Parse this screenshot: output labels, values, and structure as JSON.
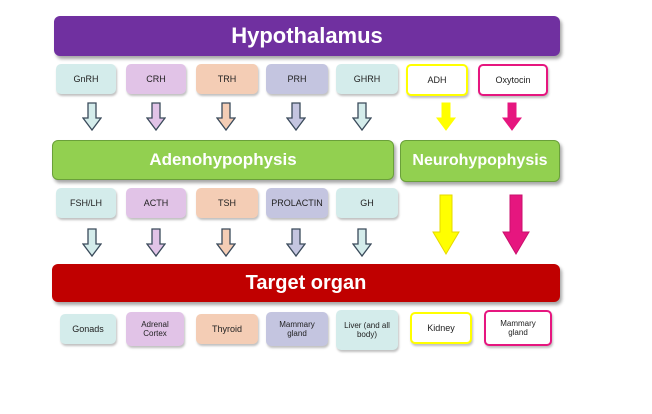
{
  "top": {
    "label": "Hypothalamus"
  },
  "middle": {
    "adeno_label": "Adenohypophysis",
    "neuro_label": "Neurohypophysis"
  },
  "bottom": {
    "label": "Target organ"
  },
  "releasing_hormones": [
    "GnRH",
    "CRH",
    "TRH",
    "PRH",
    "GHRH"
  ],
  "neuro_hormones": [
    "ADH",
    "Oxytocin"
  ],
  "pituitary_hormones": [
    "FSH/LH",
    "ACTH",
    "TSH",
    "PROLACTIN",
    "GH"
  ],
  "target_organs": [
    "Gonads",
    "Adrenal Cortex",
    "Thyroid",
    "Mammary gland",
    "Liver (and all body)"
  ],
  "neuro_targets": [
    "Kidney",
    "Mammary gland"
  ],
  "colors": {
    "hypothalamus": "#7030a0",
    "pituitary": "#92d050",
    "target": "#c00000",
    "teal": "#d4eceb",
    "lilac": "#e1c3e7",
    "peach": "#f4cdb5",
    "slate": "#c4c5e0",
    "yellow": "#ffff00",
    "magenta": "#e6167f"
  }
}
